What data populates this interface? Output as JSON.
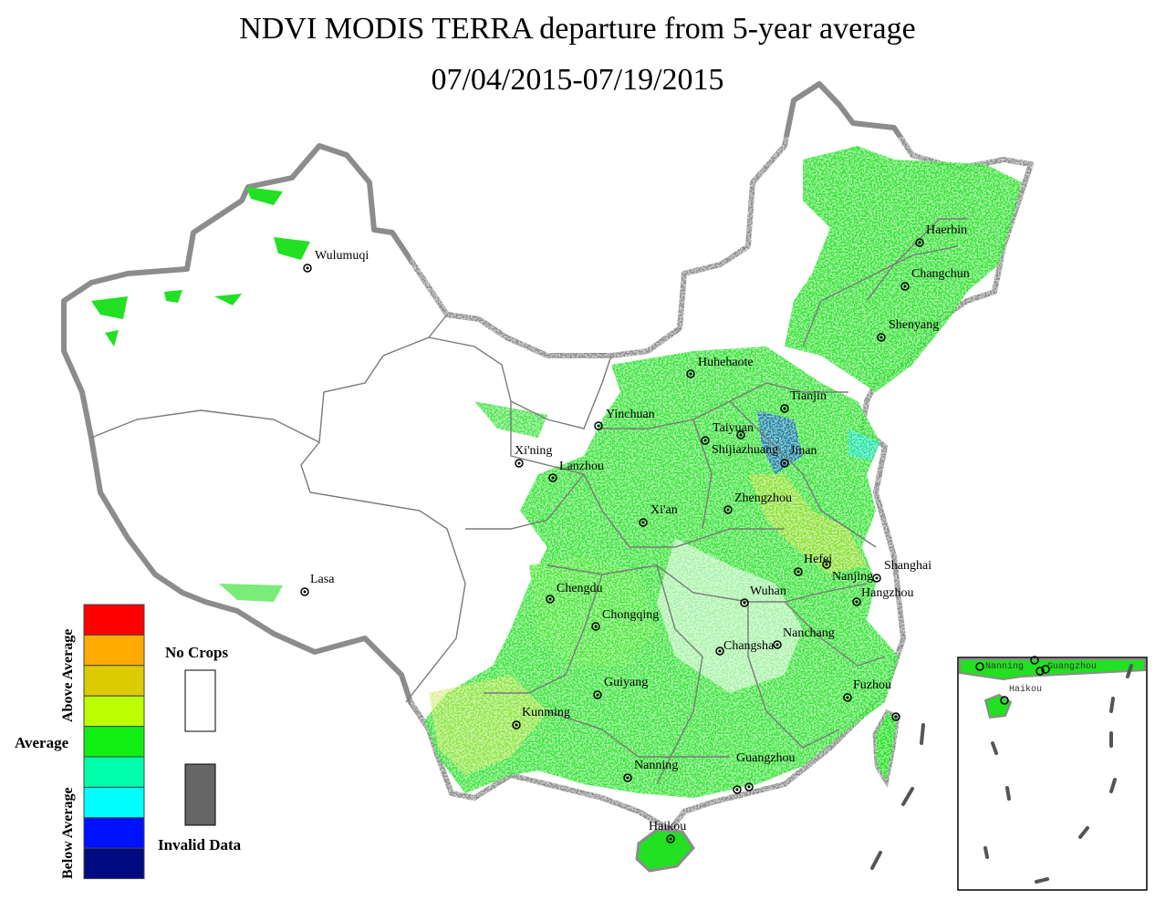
{
  "title": {
    "line1": "NDVI MODIS TERRA departure from 5-year average",
    "line2": "07/04/2015-07/19/2015"
  },
  "legend": {
    "scale_colors": [
      "#ff0000",
      "#ffaa00",
      "#dccb00",
      "#bbff00",
      "#11ee11",
      "#00ffaa",
      "#00ffff",
      "#0011ff",
      "#000a80"
    ],
    "above_label": "Above Average",
    "average_label": "Average",
    "below_label": "Below Average",
    "no_crops_label": "No Crops",
    "no_crops_color": "#ffffff",
    "invalid_label": "Invalid Data",
    "invalid_color": "#666666"
  },
  "cities": [
    {
      "name": "Wulumuqi"
    },
    {
      "name": "Haerbin"
    },
    {
      "name": "Changchun"
    },
    {
      "name": "Shenyang"
    },
    {
      "name": "Huhehaote"
    },
    {
      "name": "Tianjin"
    },
    {
      "name": "Yinchuan"
    },
    {
      "name": "Taiyuan"
    },
    {
      "name": "Shijiazhuang"
    },
    {
      "name": "Jinan"
    },
    {
      "name": "Xi'ning"
    },
    {
      "name": "Lanzhou"
    },
    {
      "name": "Zhengzhou"
    },
    {
      "name": "Xi'an"
    },
    {
      "name": "Hefei"
    },
    {
      "name": "Shanghai"
    },
    {
      "name": "Nanjing"
    },
    {
      "name": "Lasa"
    },
    {
      "name": "Chengdu"
    },
    {
      "name": "Wuhan"
    },
    {
      "name": "Hangzhou"
    },
    {
      "name": "Chongqing"
    },
    {
      "name": "Nanchang"
    },
    {
      "name": "Changsha"
    },
    {
      "name": "Guiyang"
    },
    {
      "name": "Fuzhou"
    },
    {
      "name": "Kunming"
    },
    {
      "name": "Nanning"
    },
    {
      "name": "Guangzhou"
    },
    {
      "name": "Haikou"
    }
  ],
  "inset": {
    "labels": [
      "Nanning",
      "Guangzhou",
      "Haikou"
    ]
  }
}
